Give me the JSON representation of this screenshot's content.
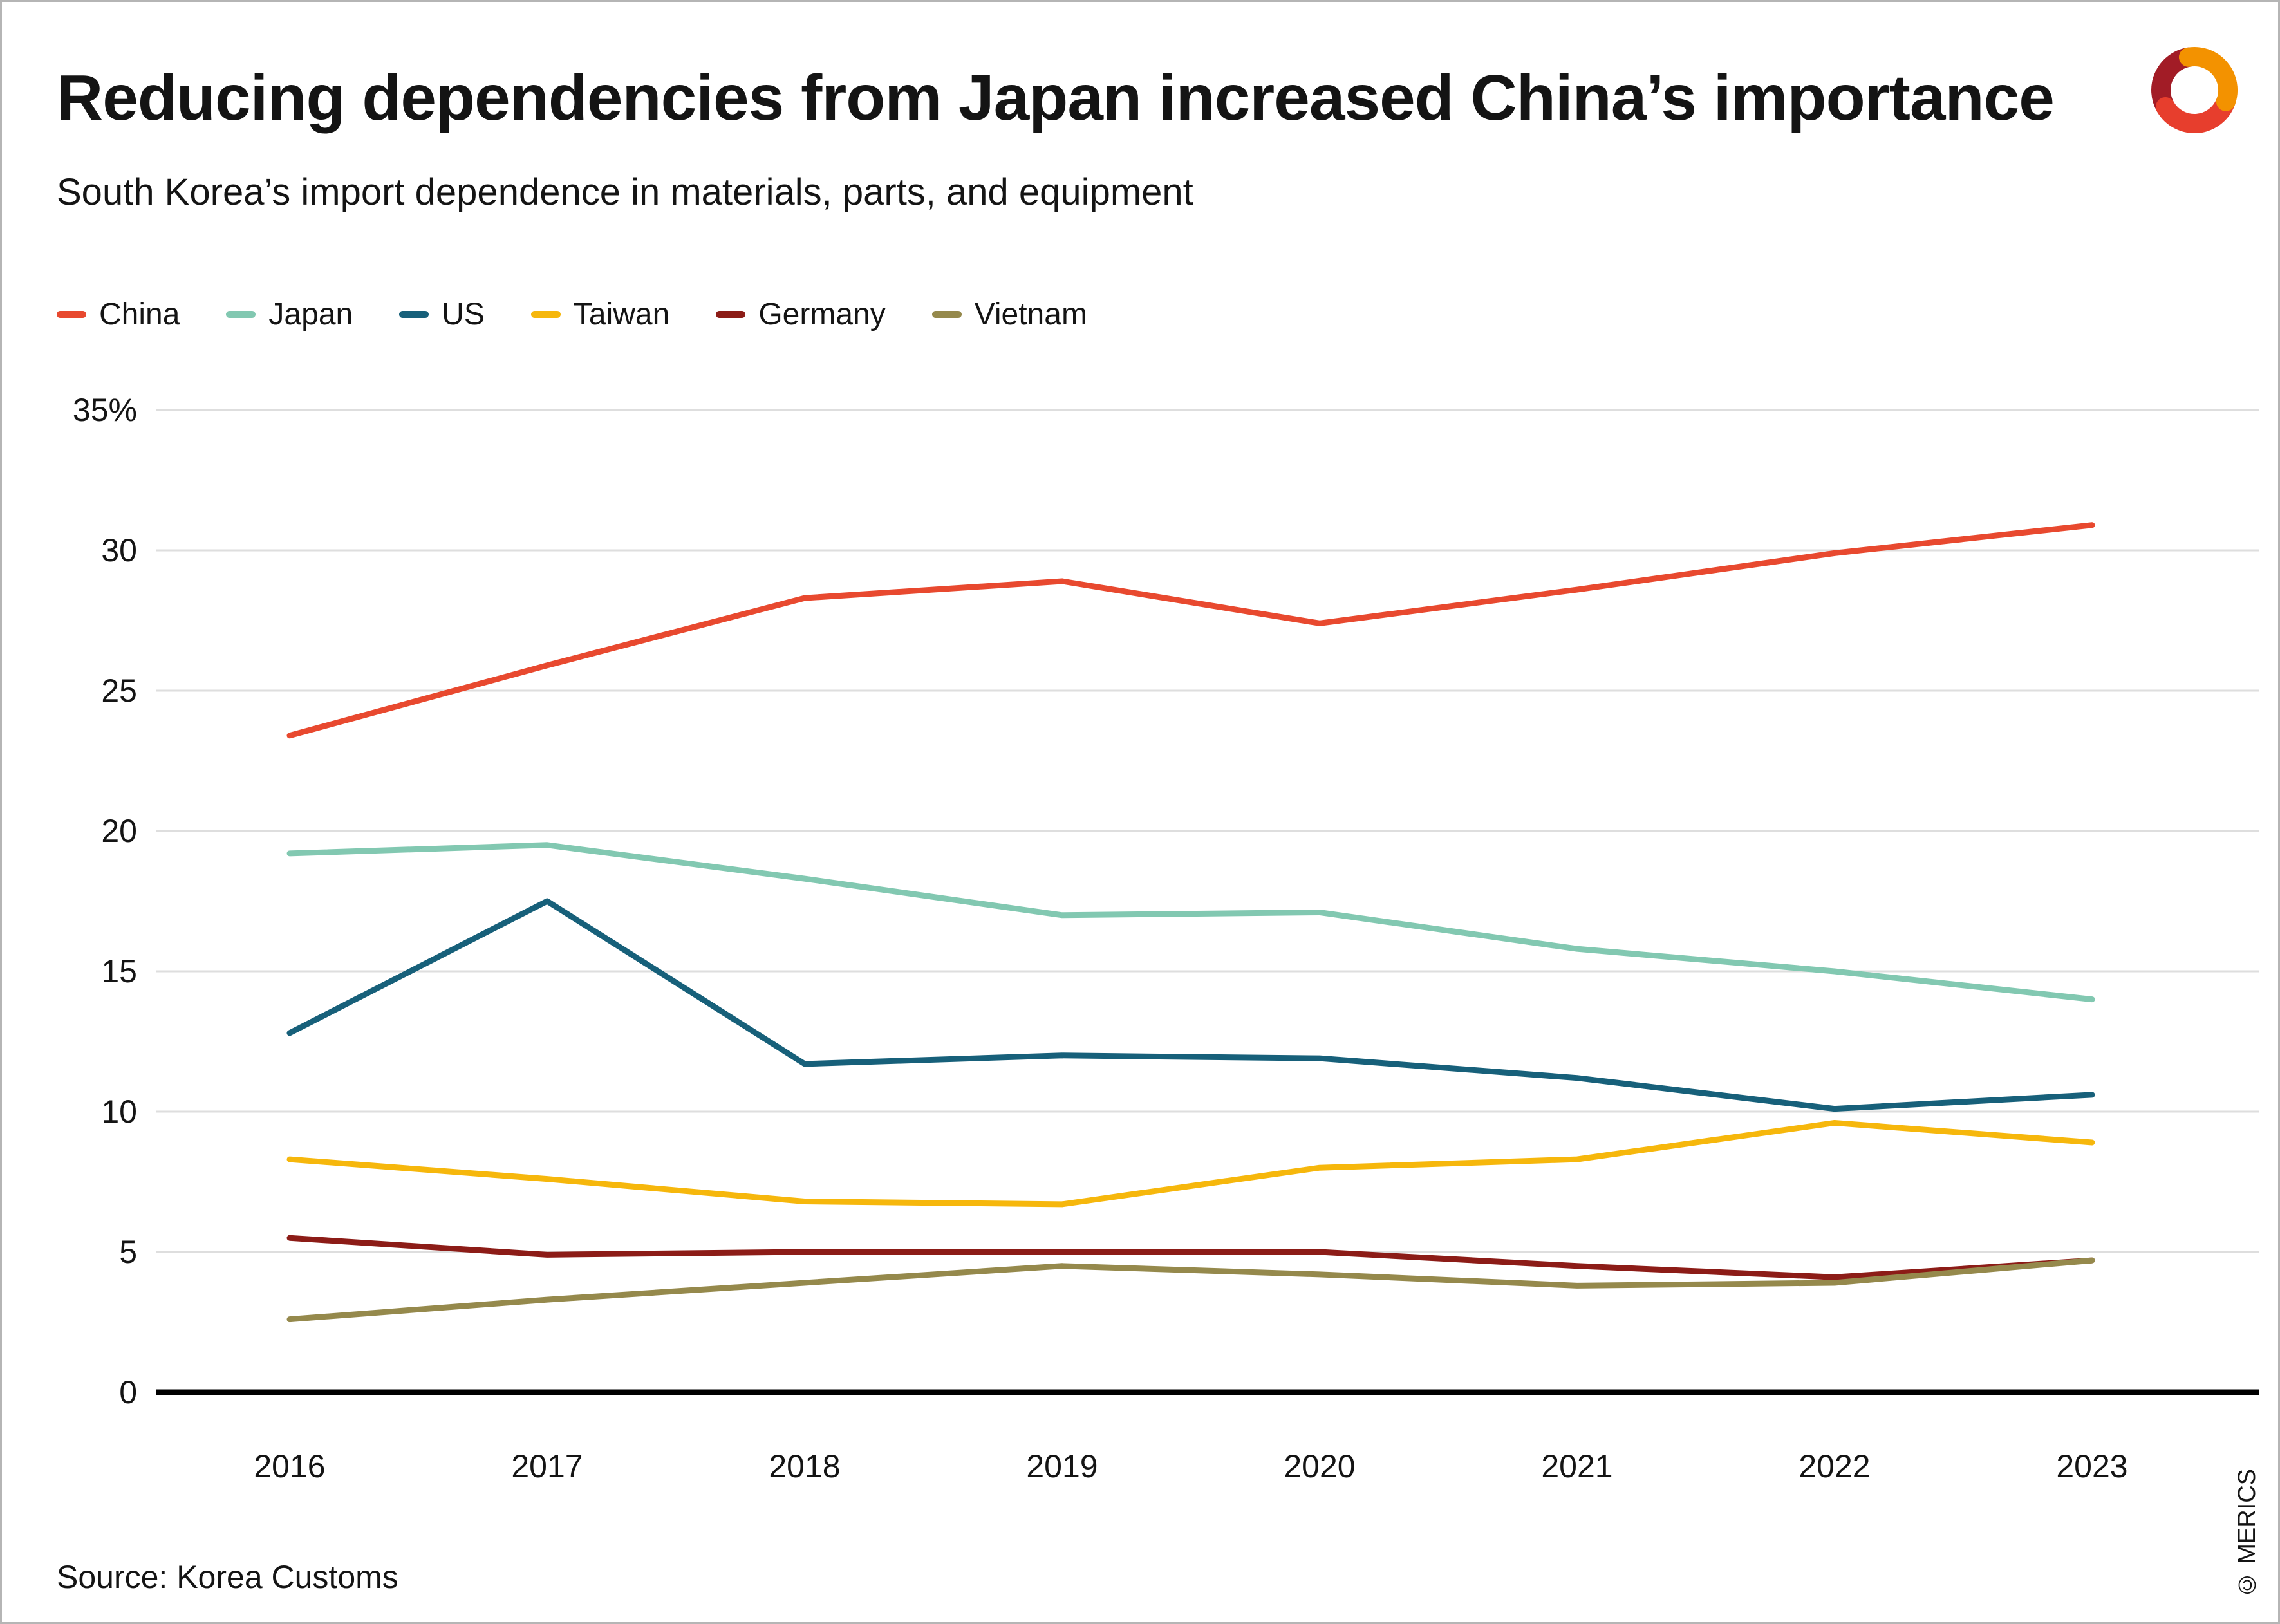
{
  "chart_data": {
    "type": "line",
    "title": "Reducing dependencies from Japan increased China’s importance",
    "subtitle": "South Korea’s import dependence in materials, parts, and equipment",
    "x": [
      2016,
      2017,
      2018,
      2019,
      2020,
      2021,
      2022,
      2023
    ],
    "series": [
      {
        "name": "China",
        "color": "#e8492f",
        "values": [
          23.4,
          25.9,
          28.3,
          28.9,
          27.4,
          28.6,
          29.9,
          30.9
        ]
      },
      {
        "name": "Japan",
        "color": "#82c8b1",
        "values": [
          19.2,
          19.5,
          18.3,
          17.0,
          17.1,
          15.8,
          15.0,
          14.0
        ]
      },
      {
        "name": "US",
        "color": "#17607a",
        "values": [
          12.8,
          17.5,
          11.7,
          12.0,
          11.9,
          11.2,
          10.1,
          10.6
        ]
      },
      {
        "name": "Taiwan",
        "color": "#f6b70c",
        "values": [
          8.3,
          7.6,
          6.8,
          6.7,
          8.0,
          8.3,
          9.6,
          8.9
        ]
      },
      {
        "name": "Germany",
        "color": "#8c1c17",
        "values": [
          5.5,
          4.9,
          5.0,
          5.0,
          5.0,
          4.5,
          4.1,
          4.7
        ]
      },
      {
        "name": "Vietnam",
        "color": "#95894c",
        "values": [
          2.6,
          3.3,
          3.9,
          4.5,
          4.2,
          3.8,
          3.9,
          4.7
        ]
      }
    ],
    "ylim": [
      0,
      35
    ],
    "yticks": [
      {
        "value": 35,
        "label": "35%"
      },
      {
        "value": 30,
        "label": "30"
      },
      {
        "value": 25,
        "label": "25"
      },
      {
        "value": 20,
        "label": "20"
      },
      {
        "value": 15,
        "label": "15"
      },
      {
        "value": 10,
        "label": "10"
      },
      {
        "value": 5,
        "label": "5"
      },
      {
        "value": 0,
        "label": "0"
      }
    ],
    "grid": "horizontal",
    "legend_position": "top",
    "source": "Source: Korea Customs"
  },
  "branding": {
    "credit": "© MERICS",
    "logo_colors": {
      "orange": "#F39200",
      "red": "#E73E2D",
      "dark_red": "#A21C26"
    }
  }
}
